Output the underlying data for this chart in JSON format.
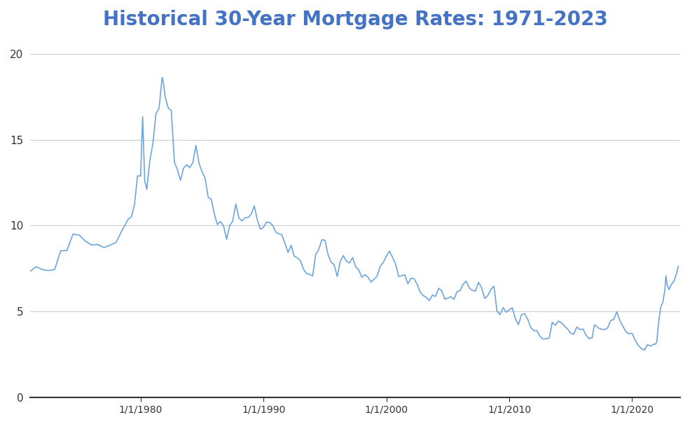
{
  "title": "Historical 30-Year Mortgage Rates: 1971-2023",
  "title_color": "#4472C4",
  "title_fontsize": 20,
  "line_color": "#6EA6DC",
  "line_width": 1.2,
  "background_color": "#ffffff",
  "ylim": [
    0,
    21
  ],
  "yticks": [
    0,
    5,
    10,
    15,
    20
  ],
  "xtick_labels": [
    "1/1/1980",
    "1/1/1990",
    "1/1/2000",
    "1/1/2010",
    "1/1/2020"
  ],
  "xtick_years": [
    1980,
    1990,
    2000,
    2010,
    2020
  ],
  "grid_color": "#cccccc",
  "grid_linewidth": 0.8,
  "data": [
    [
      1971,
      1,
      7.33
    ],
    [
      1971,
      7,
      7.6
    ],
    [
      1972,
      1,
      7.44
    ],
    [
      1972,
      7,
      7.38
    ],
    [
      1973,
      1,
      7.44
    ],
    [
      1973,
      7,
      8.53
    ],
    [
      1974,
      1,
      8.55
    ],
    [
      1974,
      7,
      9.5
    ],
    [
      1975,
      1,
      9.45
    ],
    [
      1975,
      7,
      9.1
    ],
    [
      1976,
      1,
      8.87
    ],
    [
      1976,
      7,
      8.9
    ],
    [
      1977,
      1,
      8.72
    ],
    [
      1977,
      7,
      8.85
    ],
    [
      1978,
      1,
      9.02
    ],
    [
      1978,
      7,
      9.73
    ],
    [
      1979,
      1,
      10.38
    ],
    [
      1979,
      4,
      10.5
    ],
    [
      1979,
      7,
      11.2
    ],
    [
      1979,
      10,
      12.9
    ],
    [
      1980,
      1,
      12.88
    ],
    [
      1980,
      3,
      16.35
    ],
    [
      1980,
      5,
      12.63
    ],
    [
      1980,
      7,
      12.1
    ],
    [
      1980,
      10,
      13.77
    ],
    [
      1981,
      1,
      14.8
    ],
    [
      1981,
      4,
      16.52
    ],
    [
      1981,
      7,
      16.82
    ],
    [
      1981,
      10,
      18.63
    ],
    [
      1981,
      11,
      18.45
    ],
    [
      1982,
      1,
      17.48
    ],
    [
      1982,
      4,
      16.85
    ],
    [
      1982,
      7,
      16.7
    ],
    [
      1982,
      10,
      13.7
    ],
    [
      1983,
      1,
      13.24
    ],
    [
      1983,
      4,
      12.63
    ],
    [
      1983,
      7,
      13.35
    ],
    [
      1983,
      10,
      13.54
    ],
    [
      1984,
      1,
      13.37
    ],
    [
      1984,
      4,
      13.67
    ],
    [
      1984,
      7,
      14.67
    ],
    [
      1984,
      10,
      13.64
    ],
    [
      1985,
      1,
      13.12
    ],
    [
      1985,
      4,
      12.77
    ],
    [
      1985,
      7,
      11.65
    ],
    [
      1985,
      10,
      11.54
    ],
    [
      1986,
      1,
      10.66
    ],
    [
      1986,
      4,
      10.06
    ],
    [
      1986,
      7,
      10.24
    ],
    [
      1986,
      10,
      9.98
    ],
    [
      1987,
      1,
      9.2
    ],
    [
      1987,
      4,
      10.0
    ],
    [
      1987,
      7,
      10.26
    ],
    [
      1987,
      10,
      11.26
    ],
    [
      1988,
      1,
      10.44
    ],
    [
      1988,
      4,
      10.27
    ],
    [
      1988,
      7,
      10.46
    ],
    [
      1988,
      10,
      10.47
    ],
    [
      1989,
      1,
      10.66
    ],
    [
      1989,
      4,
      11.15
    ],
    [
      1989,
      7,
      10.32
    ],
    [
      1989,
      10,
      9.79
    ],
    [
      1990,
      1,
      9.9
    ],
    [
      1990,
      4,
      10.2
    ],
    [
      1990,
      7,
      10.18
    ],
    [
      1990,
      10,
      10.01
    ],
    [
      1991,
      1,
      9.62
    ],
    [
      1991,
      4,
      9.52
    ],
    [
      1991,
      7,
      9.46
    ],
    [
      1991,
      10,
      8.96
    ],
    [
      1992,
      1,
      8.43
    ],
    [
      1992,
      4,
      8.85
    ],
    [
      1992,
      7,
      8.22
    ],
    [
      1992,
      10,
      8.12
    ],
    [
      1993,
      1,
      7.96
    ],
    [
      1993,
      4,
      7.46
    ],
    [
      1993,
      7,
      7.21
    ],
    [
      1993,
      10,
      7.16
    ],
    [
      1994,
      1,
      7.06
    ],
    [
      1994,
      4,
      8.32
    ],
    [
      1994,
      7,
      8.61
    ],
    [
      1994,
      10,
      9.17
    ],
    [
      1995,
      1,
      9.15
    ],
    [
      1995,
      4,
      8.32
    ],
    [
      1995,
      7,
      7.87
    ],
    [
      1995,
      10,
      7.72
    ],
    [
      1996,
      1,
      7.03
    ],
    [
      1996,
      4,
      7.93
    ],
    [
      1996,
      7,
      8.25
    ],
    [
      1996,
      10,
      7.92
    ],
    [
      1997,
      1,
      7.82
    ],
    [
      1997,
      4,
      8.14
    ],
    [
      1997,
      7,
      7.6
    ],
    [
      1997,
      10,
      7.42
    ],
    [
      1998,
      1,
      6.99
    ],
    [
      1998,
      4,
      7.14
    ],
    [
      1998,
      7,
      7.0
    ],
    [
      1998,
      10,
      6.71
    ],
    [
      1999,
      1,
      6.87
    ],
    [
      1999,
      4,
      7.05
    ],
    [
      1999,
      7,
      7.63
    ],
    [
      1999,
      10,
      7.85
    ],
    [
      2000,
      1,
      8.21
    ],
    [
      2000,
      4,
      8.52
    ],
    [
      2000,
      7,
      8.15
    ],
    [
      2000,
      10,
      7.76
    ],
    [
      2001,
      1,
      7.03
    ],
    [
      2001,
      4,
      7.08
    ],
    [
      2001,
      7,
      7.13
    ],
    [
      2001,
      10,
      6.61
    ],
    [
      2002,
      1,
      6.93
    ],
    [
      2002,
      4,
      6.91
    ],
    [
      2002,
      7,
      6.59
    ],
    [
      2002,
      10,
      6.13
    ],
    [
      2003,
      1,
      5.92
    ],
    [
      2003,
      4,
      5.81
    ],
    [
      2003,
      7,
      5.63
    ],
    [
      2003,
      10,
      5.95
    ],
    [
      2004,
      1,
      5.87
    ],
    [
      2004,
      4,
      6.34
    ],
    [
      2004,
      7,
      6.22
    ],
    [
      2004,
      10,
      5.72
    ],
    [
      2005,
      1,
      5.77
    ],
    [
      2005,
      4,
      5.86
    ],
    [
      2005,
      7,
      5.7
    ],
    [
      2005,
      10,
      6.15
    ],
    [
      2006,
      1,
      6.22
    ],
    [
      2006,
      4,
      6.59
    ],
    [
      2006,
      7,
      6.76
    ],
    [
      2006,
      10,
      6.36
    ],
    [
      2007,
      1,
      6.22
    ],
    [
      2007,
      4,
      6.18
    ],
    [
      2007,
      7,
      6.7
    ],
    [
      2007,
      10,
      6.38
    ],
    [
      2008,
      1,
      5.76
    ],
    [
      2008,
      4,
      5.92
    ],
    [
      2008,
      7,
      6.26
    ],
    [
      2008,
      10,
      6.47
    ],
    [
      2009,
      1,
      5.01
    ],
    [
      2009,
      4,
      4.81
    ],
    [
      2009,
      7,
      5.22
    ],
    [
      2009,
      10,
      4.95
    ],
    [
      2010,
      1,
      5.09
    ],
    [
      2010,
      4,
      5.21
    ],
    [
      2010,
      7,
      4.56
    ],
    [
      2010,
      10,
      4.23
    ],
    [
      2011,
      1,
      4.81
    ],
    [
      2011,
      4,
      4.87
    ],
    [
      2011,
      7,
      4.55
    ],
    [
      2011,
      10,
      4.06
    ],
    [
      2012,
      1,
      3.87
    ],
    [
      2012,
      4,
      3.88
    ],
    [
      2012,
      7,
      3.55
    ],
    [
      2012,
      10,
      3.38
    ],
    [
      2013,
      1,
      3.41
    ],
    [
      2013,
      4,
      3.45
    ],
    [
      2013,
      7,
      4.37
    ],
    [
      2013,
      10,
      4.19
    ],
    [
      2014,
      1,
      4.43
    ],
    [
      2014,
      4,
      4.34
    ],
    [
      2014,
      7,
      4.14
    ],
    [
      2014,
      10,
      3.97
    ],
    [
      2015,
      1,
      3.73
    ],
    [
      2015,
      4,
      3.67
    ],
    [
      2015,
      7,
      4.09
    ],
    [
      2015,
      10,
      3.94
    ],
    [
      2016,
      1,
      3.97
    ],
    [
      2016,
      4,
      3.61
    ],
    [
      2016,
      7,
      3.41
    ],
    [
      2016,
      10,
      3.47
    ],
    [
      2016,
      12,
      4.2
    ],
    [
      2017,
      1,
      4.2
    ],
    [
      2017,
      4,
      4.03
    ],
    [
      2017,
      7,
      3.96
    ],
    [
      2017,
      10,
      3.94
    ],
    [
      2018,
      1,
      4.03
    ],
    [
      2018,
      4,
      4.47
    ],
    [
      2018,
      7,
      4.52
    ],
    [
      2018,
      10,
      4.98
    ],
    [
      2019,
      1,
      4.46
    ],
    [
      2019,
      4,
      4.14
    ],
    [
      2019,
      7,
      3.81
    ],
    [
      2019,
      10,
      3.69
    ],
    [
      2020,
      1,
      3.72
    ],
    [
      2020,
      4,
      3.31
    ],
    [
      2020,
      7,
      3.02
    ],
    [
      2020,
      10,
      2.83
    ],
    [
      2021,
      1,
      2.74
    ],
    [
      2021,
      4,
      3.06
    ],
    [
      2021,
      7,
      2.98
    ],
    [
      2021,
      10,
      3.09
    ],
    [
      2021,
      12,
      3.1
    ],
    [
      2022,
      1,
      3.22
    ],
    [
      2022,
      3,
      4.42
    ],
    [
      2022,
      5,
      5.27
    ],
    [
      2022,
      7,
      5.54
    ],
    [
      2022,
      9,
      6.29
    ],
    [
      2022,
      10,
      7.08
    ],
    [
      2022,
      11,
      6.58
    ],
    [
      2023,
      1,
      6.27
    ],
    [
      2023,
      3,
      6.54
    ],
    [
      2023,
      6,
      6.79
    ],
    [
      2023,
      9,
      7.31
    ],
    [
      2023,
      10,
      7.63
    ]
  ]
}
